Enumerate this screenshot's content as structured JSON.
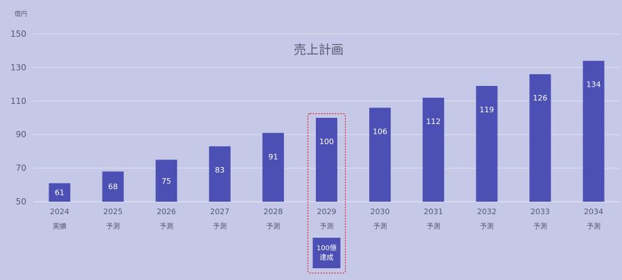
{
  "chart_data": {
    "type": "bar",
    "title": "売上計画",
    "unit_label": "億円",
    "ylim": [
      50,
      150
    ],
    "yticks": [
      50,
      70,
      90,
      110,
      130,
      150
    ],
    "categories": [
      "2024",
      "2025",
      "2026",
      "2027",
      "2028",
      "2029",
      "2030",
      "2031",
      "2032",
      "2033",
      "2034"
    ],
    "sub_labels": [
      "実績",
      "予測",
      "予測",
      "予測",
      "予測",
      "予測",
      "予測",
      "予測",
      "予測",
      "予測",
      "予測"
    ],
    "values": [
      61,
      68,
      75,
      83,
      91,
      100,
      106,
      112,
      119,
      126,
      134
    ],
    "highlight_category": "2029",
    "highlight_badge": [
      "100億",
      "達成"
    ],
    "colors": {
      "background": "#c5c8e6",
      "bar": "#4c4fb4",
      "grid": "#dfe1f2",
      "highlight": "#e0202a",
      "text": "#555a70"
    }
  }
}
